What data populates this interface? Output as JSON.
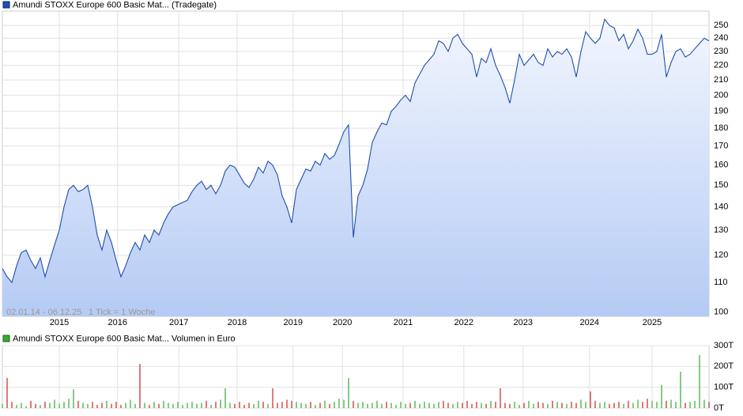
{
  "chart_data": [
    {
      "type": "area",
      "legend": "Amundi STOXX Europe 600 Basic Mat... (Tradegate)",
      "date_range": "02.01.14 - 06.12.25",
      "tick_note": "1 Tick = 1 Woche",
      "color": "#1f4fb0",
      "log_scale": true,
      "grid": true,
      "xlim": [
        0,
        149
      ],
      "xticks": [
        {
          "value": 12,
          "label": "2015"
        },
        {
          "value": 24.3,
          "label": "2016"
        },
        {
          "value": 37.2,
          "label": "2017"
        },
        {
          "value": 49.5,
          "label": "2018"
        },
        {
          "value": 61.3,
          "label": "2019"
        },
        {
          "value": 71.7,
          "label": "2020"
        },
        {
          "value": 84.5,
          "label": "2021"
        },
        {
          "value": 97.3,
          "label": "2022"
        },
        {
          "value": 109.8,
          "label": "2023"
        },
        {
          "value": 123.8,
          "label": "2024"
        },
        {
          "value": 137,
          "label": "2025"
        }
      ],
      "ylim": [
        98.7,
        261.7
      ],
      "yticks": [
        100,
        110,
        120,
        130,
        140,
        150,
        160,
        170,
        180,
        190,
        200,
        210,
        220,
        230,
        240,
        250
      ],
      "values": [
        115,
        112,
        110,
        116,
        121,
        122,
        118,
        115,
        119,
        112,
        118,
        124,
        130,
        140,
        148,
        150,
        147,
        148,
        150,
        140,
        128,
        122,
        130,
        125,
        118,
        112,
        116,
        121,
        125,
        122,
        128,
        125,
        130,
        128,
        133,
        137,
        140,
        141,
        142,
        143,
        147,
        150,
        152,
        148,
        150,
        146,
        150,
        157,
        160,
        159,
        155,
        151,
        149,
        153,
        159,
        156,
        162,
        160,
        155,
        145,
        140,
        133,
        148,
        153,
        158,
        157,
        162,
        160,
        166,
        163,
        165,
        171,
        178,
        182,
        127,
        145,
        150,
        158,
        172,
        178,
        183,
        182,
        190,
        193,
        197,
        200,
        196,
        208,
        214,
        220,
        224,
        228,
        238,
        236,
        230,
        240,
        243,
        236,
        232,
        228,
        212,
        225,
        222,
        232,
        220,
        213,
        205,
        195,
        210,
        228,
        220,
        224,
        228,
        222,
        220,
        232,
        226,
        230,
        228,
        232,
        226,
        212,
        230,
        245,
        240,
        236,
        240,
        255,
        250,
        248,
        238,
        243,
        232,
        238,
        247,
        240,
        228,
        228,
        230,
        243,
        212,
        222,
        230,
        232,
        226,
        228,
        232,
        236,
        240,
        238
      ]
    },
    {
      "type": "bar",
      "legend": "Amundi STOXX Europe 600 Basic Mat... Volumen in Euro",
      "legend_color": "#33aa33",
      "up_color": "#33aa33",
      "down_color": "#cc2222",
      "grid": true,
      "xlim": [
        0,
        149
      ],
      "ylim": [
        0,
        300
      ],
      "yticks": [
        {
          "value": 0,
          "label": "0T"
        },
        {
          "value": 100,
          "label": "100T"
        },
        {
          "value": 200,
          "label": "200T"
        },
        {
          "value": 300,
          "label": "300T"
        }
      ],
      "values": [
        20,
        145,
        30,
        15,
        25,
        10,
        35,
        20,
        15,
        30,
        25,
        40,
        20,
        30,
        45,
        90,
        35,
        25,
        20,
        30,
        15,
        25,
        35,
        20,
        30,
        15,
        25,
        40,
        20,
        212,
        25,
        15,
        30,
        20,
        35,
        25,
        20,
        30,
        15,
        25,
        30,
        20,
        25,
        35,
        15,
        30,
        40,
        95,
        25,
        20,
        30,
        15,
        25,
        20,
        35,
        30,
        20,
        95,
        25,
        30,
        40,
        35,
        30,
        25,
        20,
        30,
        15,
        25,
        35,
        20,
        30,
        45,
        40,
        145,
        35,
        25,
        30,
        20,
        25,
        35,
        20,
        30,
        25,
        15,
        30,
        20,
        25,
        35,
        20,
        30,
        25,
        20,
        30,
        35,
        25,
        20,
        30,
        25,
        35,
        20,
        30,
        25,
        20,
        35,
        30,
        95,
        25,
        20,
        30,
        15,
        25,
        35,
        20,
        30,
        25,
        20,
        35,
        30,
        25,
        20,
        30,
        25,
        40,
        30,
        80,
        35,
        25,
        30,
        20,
        25,
        30,
        20,
        35,
        25,
        40,
        30,
        45,
        35,
        30,
        110,
        35,
        40,
        30,
        175,
        25,
        30,
        35,
        255,
        40,
        30
      ]
    }
  ]
}
